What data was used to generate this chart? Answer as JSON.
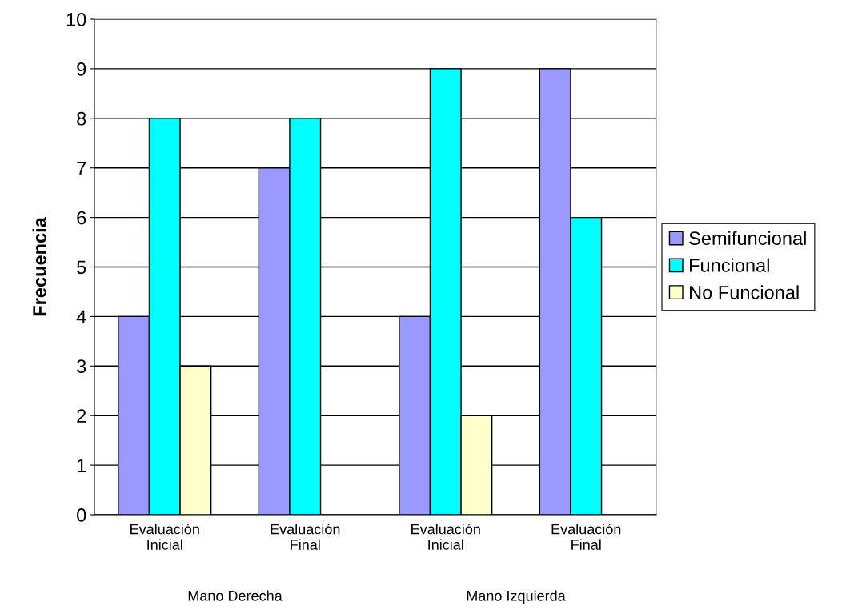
{
  "chart_data": {
    "type": "bar",
    "ylabel": "Frecuencia",
    "categories": [
      "Evaluación\nInicial",
      "Evaluación\nFinal",
      "Evaluación\nInicial",
      "Evaluación\nFinal"
    ],
    "series": [
      {
        "name": "Semifuncional",
        "color": "#9999ff",
        "values": [
          4,
          7,
          4,
          9
        ]
      },
      {
        "name": "Funcional",
        "color": "#00ffff",
        "values": [
          8,
          8,
          9,
          6
        ]
      },
      {
        "name": "No Funcional",
        "color": "#ffffcc",
        "values": [
          3,
          null,
          2,
          null
        ]
      }
    ],
    "annotations": [
      "Mano Derecha",
      "Mano Izquierda"
    ],
    "ylim": [
      0,
      10
    ],
    "yticks": [
      0,
      1,
      2,
      3,
      4,
      5,
      6,
      7,
      8,
      9,
      10
    ],
    "grid": "y",
    "legend": "right"
  }
}
